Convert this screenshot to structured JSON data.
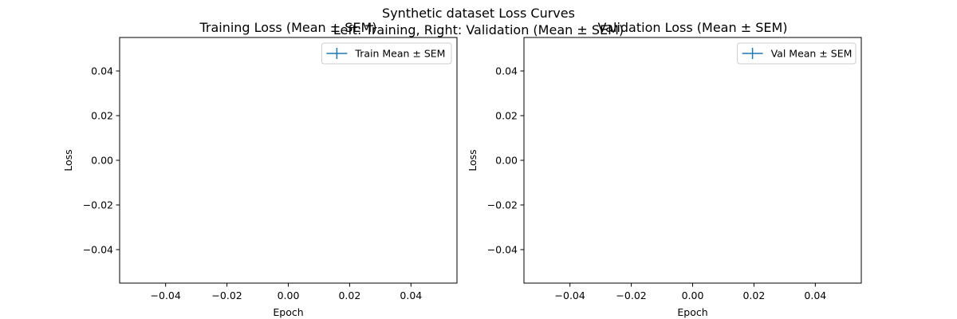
{
  "figure": {
    "suptitle_line1": "Synthetic dataset Loss Curves",
    "suptitle_line2": "Left: Training, Right: Validation (Mean ± SEM)"
  },
  "chart_data": [
    {
      "type": "line",
      "title": "Training Loss (Mean ± SEM)",
      "xlabel": "Epoch",
      "ylabel": "Loss",
      "xlim": [
        -0.055,
        0.055
      ],
      "ylim": [
        -0.055,
        0.055
      ],
      "xticks": [
        -0.04,
        -0.02,
        0.0,
        0.02,
        0.04
      ],
      "yticks": [
        -0.04,
        -0.02,
        0.0,
        0.02,
        0.04
      ],
      "xtick_labels": [
        "−0.04",
        "−0.02",
        "0.00",
        "0.02",
        "0.04"
      ],
      "ytick_labels": [
        "−0.04",
        "−0.02",
        "0.00",
        "0.02",
        "0.04"
      ],
      "grid": false,
      "legend_position": "upper right",
      "series": [
        {
          "name": "Train Mean ± SEM",
          "x": [],
          "y": [],
          "yerr": [],
          "color": "#1f77b4"
        }
      ]
    },
    {
      "type": "line",
      "title": "Validation Loss (Mean ± SEM)",
      "xlabel": "Epoch",
      "ylabel": "Loss",
      "xlim": [
        -0.055,
        0.055
      ],
      "ylim": [
        -0.055,
        0.055
      ],
      "xticks": [
        -0.04,
        -0.02,
        0.0,
        0.02,
        0.04
      ],
      "yticks": [
        -0.04,
        -0.02,
        0.0,
        0.02,
        0.04
      ],
      "xtick_labels": [
        "−0.04",
        "−0.02",
        "0.00",
        "0.02",
        "0.04"
      ],
      "ytick_labels": [
        "−0.04",
        "−0.02",
        "0.00",
        "0.02",
        "0.04"
      ],
      "grid": false,
      "legend_position": "upper right",
      "series": [
        {
          "name": "Val Mean ± SEM",
          "x": [],
          "y": [],
          "yerr": [],
          "color": "#1f77b4"
        }
      ]
    }
  ]
}
